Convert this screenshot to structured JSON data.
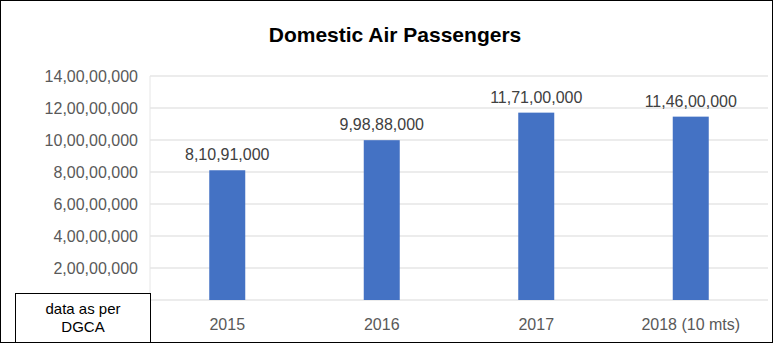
{
  "chart_data": {
    "type": "bar",
    "title": "Domestic Air Passengers",
    "categories": [
      "2015",
      "2016",
      "2017",
      "2018 (10 mts)"
    ],
    "values": [
      81091000,
      99888000,
      117100000,
      114600000
    ],
    "value_labels": [
      "8,10,91,000",
      "9,98,88,000",
      "11,71,00,000",
      "11,46,00,000"
    ],
    "color": "#4472c4",
    "ylim": [
      0,
      140000000
    ],
    "yticks": [
      {
        "value": 20000000,
        "label": "2,00,00,000"
      },
      {
        "value": 40000000,
        "label": "4,00,00,000"
      },
      {
        "value": 60000000,
        "label": "6,00,00,000"
      },
      {
        "value": 80000000,
        "label": "8,00,00,000"
      },
      {
        "value": 100000000,
        "label": "10,00,00,000"
      },
      {
        "value": 120000000,
        "label": "12,00,00,000"
      },
      {
        "value": 140000000,
        "label": "14,00,00,000"
      }
    ],
    "grid": true,
    "data_labels": true,
    "annotations": [
      "data as per DGCA"
    ]
  }
}
